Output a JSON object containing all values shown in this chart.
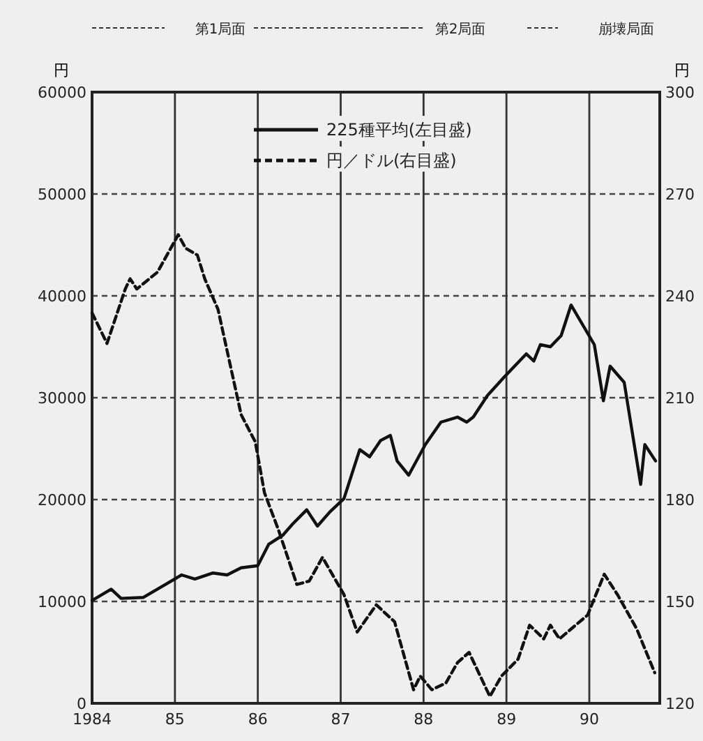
{
  "chart_data": {
    "type": "line",
    "ylabel": "円",
    "y2label": "円",
    "annotations": [
      "第1局面",
      "第2局面",
      "崩壊局面"
    ],
    "xlim": [
      1984,
      1990.85
    ],
    "xticks": [
      {
        "value": 1984,
        "label": "1984"
      },
      {
        "value": 1985,
        "label": "85"
      },
      {
        "value": 1986,
        "label": "86"
      },
      {
        "value": 1987,
        "label": "87"
      },
      {
        "value": 1988,
        "label": "88"
      },
      {
        "value": 1989,
        "label": "89"
      },
      {
        "value": 1990,
        "label": "90"
      }
    ],
    "ylim": [
      0,
      60000
    ],
    "yticks": [
      0,
      10000,
      20000,
      30000,
      40000,
      50000,
      60000
    ],
    "y2lim": [
      120,
      300
    ],
    "y2ticks": [
      120,
      150,
      180,
      210,
      240,
      270,
      300
    ],
    "grid": true,
    "legend": "top",
    "marker": "none",
    "series": [
      {
        "name": "225種平均(左目盛)",
        "color": "#111111",
        "line_style": "solid",
        "x": [
          1984.0,
          1984.23,
          1984.35,
          1984.62,
          1984.85,
          1985.08,
          1985.24,
          1985.46,
          1985.63,
          1985.8,
          1986.0,
          1986.13,
          1986.3,
          1986.42,
          1986.59,
          1986.72,
          1986.87,
          1987.04,
          1987.23,
          1987.35,
          1987.48,
          1987.6,
          1987.68,
          1987.82,
          1988.02,
          1988.21,
          1988.41,
          1988.52,
          1988.6,
          1988.77,
          1988.97,
          1989.24,
          1989.33,
          1989.41,
          1989.53,
          1989.66,
          1989.78,
          1990.06,
          1990.17,
          1990.25,
          1990.42,
          1990.62,
          1990.67,
          1990.8
        ],
        "values": [
          10100,
          11200,
          10300,
          10400,
          11500,
          12600,
          12200,
          12800,
          12600,
          13300,
          13500,
          15600,
          16500,
          17600,
          19000,
          17400,
          18800,
          20100,
          24900,
          24200,
          25800,
          26300,
          23800,
          22400,
          25400,
          27600,
          28100,
          27600,
          28100,
          30200,
          32000,
          34300,
          33600,
          35200,
          35000,
          36100,
          39100,
          35200,
          29700,
          33100,
          31500,
          21500,
          25400,
          23800
        ]
      },
      {
        "name": "円／ドル(右目盛)",
        "color": "#111111",
        "line_style": "dashed",
        "axis": "y2",
        "x": [
          1984.0,
          1984.18,
          1984.4,
          1984.46,
          1984.54,
          1984.79,
          1985.04,
          1985.13,
          1985.27,
          1985.36,
          1985.52,
          1985.8,
          1985.97,
          1986.08,
          1986.25,
          1986.47,
          1986.62,
          1986.78,
          1987.04,
          1987.2,
          1987.43,
          1987.65,
          1987.88,
          1987.96,
          1988.1,
          1988.27,
          1988.41,
          1988.55,
          1988.8,
          1988.94,
          1989.14,
          1989.28,
          1989.45,
          1989.53,
          1989.64,
          1989.98,
          1990.18,
          1990.34,
          1990.57,
          1990.79
        ],
        "values": [
          235,
          226,
          242,
          245,
          242,
          247,
          258,
          254,
          252,
          245,
          236,
          205,
          197,
          182,
          171,
          155,
          156,
          163,
          152,
          141,
          149,
          144,
          124,
          128,
          124,
          126,
          132,
          135,
          122,
          128,
          133,
          143,
          139,
          143,
          139,
          146,
          158,
          152,
          142,
          129
        ]
      }
    ]
  }
}
